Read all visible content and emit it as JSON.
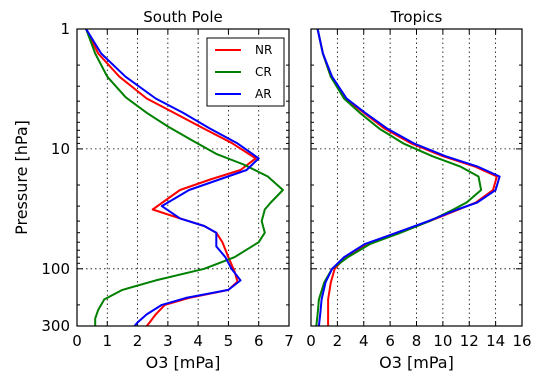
{
  "chart_data": [
    {
      "type": "line",
      "title": "South Pole",
      "xlabel": "O3 [mPa]",
      "ylabel": "Pressure [hPa]",
      "xlim": [
        0,
        7
      ],
      "ylim": [
        300,
        1
      ],
      "yscale": "log",
      "xticks": [
        "0",
        "1",
        "2",
        "3",
        "4",
        "5",
        "6",
        "7"
      ],
      "yticks": [
        {
          "value": 1,
          "label": "1"
        },
        {
          "value": 10,
          "label": "10"
        },
        {
          "value": 100,
          "label": "100"
        },
        {
          "value": 300,
          "label": "300"
        }
      ],
      "grid": true,
      "legend": {
        "placement": "top-right",
        "entries": [
          "NR",
          "CR",
          "AR"
        ]
      },
      "series": [
        {
          "name": "NR",
          "color": "#ff0000",
          "points": [
            [
              0.3,
              1
            ],
            [
              0.7,
              1.6
            ],
            [
              1.4,
              2.5
            ],
            [
              2.3,
              3.8
            ],
            [
              3.2,
              5
            ],
            [
              4.2,
              6.8
            ],
            [
              5.1,
              8.9
            ],
            [
              5.9,
              12
            ],
            [
              5.4,
              15
            ],
            [
              4.4,
              18
            ],
            [
              3.4,
              22
            ],
            [
              2.5,
              32
            ],
            [
              3.4,
              38
            ],
            [
              4.2,
              44
            ],
            [
              4.6,
              50
            ],
            [
              4.8,
              60
            ],
            [
              5.0,
              80
            ],
            [
              5.2,
              105
            ],
            [
              5.3,
              128
            ],
            [
              5.0,
              150
            ],
            [
              3.7,
              175
            ],
            [
              2.9,
              200
            ],
            [
              2.6,
              240
            ],
            [
              2.4,
              280
            ],
            [
              2.3,
              300
            ]
          ]
        },
        {
          "name": "CR",
          "color": "#008000",
          "points": [
            [
              0.3,
              1
            ],
            [
              0.6,
              1.6
            ],
            [
              1.0,
              2.5
            ],
            [
              1.6,
              3.7
            ],
            [
              2.3,
              5
            ],
            [
              3.0,
              6.5
            ],
            [
              3.8,
              8.5
            ],
            [
              4.6,
              11
            ],
            [
              5.5,
              13.5
            ],
            [
              6.3,
              17
            ],
            [
              6.8,
              22
            ],
            [
              6.4,
              28
            ],
            [
              6.2,
              32
            ],
            [
              6.1,
              40
            ],
            [
              6.2,
              50
            ],
            [
              6.0,
              60
            ],
            [
              5.2,
              80
            ],
            [
              4.2,
              100
            ],
            [
              2.6,
              125
            ],
            [
              1.5,
              150
            ],
            [
              0.9,
              180
            ],
            [
              0.7,
              220
            ],
            [
              0.6,
              260
            ],
            [
              0.6,
              300
            ]
          ]
        },
        {
          "name": "AR",
          "color": "#0000ff",
          "points": [
            [
              0.3,
              1
            ],
            [
              0.8,
              1.6
            ],
            [
              1.6,
              2.5
            ],
            [
              2.6,
              3.8
            ],
            [
              3.5,
              5
            ],
            [
              4.4,
              6.8
            ],
            [
              5.3,
              9
            ],
            [
              6.0,
              12
            ],
            [
              5.6,
              15
            ],
            [
              4.7,
              18
            ],
            [
              3.7,
              22
            ],
            [
              2.8,
              30
            ],
            [
              3.4,
              38
            ],
            [
              4.2,
              44
            ],
            [
              4.6,
              50
            ],
            [
              4.6,
              65
            ],
            [
              4.9,
              80
            ],
            [
              5.1,
              100
            ],
            [
              5.4,
              125
            ],
            [
              5.0,
              150
            ],
            [
              3.6,
              175
            ],
            [
              2.8,
              200
            ],
            [
              2.3,
              240
            ],
            [
              2.0,
              280
            ],
            [
              1.9,
              300
            ]
          ]
        }
      ]
    },
    {
      "type": "line",
      "title": "Tropics",
      "xlabel": "O3 [mPa]",
      "xlim": [
        0,
        16
      ],
      "ylim": [
        300,
        1
      ],
      "yscale": "log",
      "xticks": [
        "0",
        "2",
        "4",
        "6",
        "8",
        "10",
        "12",
        "14",
        "16"
      ],
      "grid": true,
      "series": [
        {
          "name": "NR",
          "color": "#ff0000",
          "points": [
            [
              0.5,
              1
            ],
            [
              0.9,
              1.6
            ],
            [
              1.5,
              2.5
            ],
            [
              2.6,
              3.8
            ],
            [
              4.0,
              5
            ],
            [
              5.6,
              6.8
            ],
            [
              7.6,
              9
            ],
            [
              10.0,
              11.5
            ],
            [
              12.4,
              14
            ],
            [
              14.1,
              17
            ],
            [
              13.8,
              22
            ],
            [
              12.5,
              28
            ],
            [
              11.2,
              32
            ],
            [
              9.0,
              40
            ],
            [
              6.5,
              50
            ],
            [
              4.2,
              62
            ],
            [
              2.6,
              80
            ],
            [
              1.8,
              100
            ],
            [
              1.5,
              130
            ],
            [
              1.3,
              180
            ],
            [
              1.3,
              240
            ],
            [
              1.3,
              300
            ]
          ]
        },
        {
          "name": "CR",
          "color": "#008000",
          "points": [
            [
              0.5,
              1
            ],
            [
              0.9,
              1.6
            ],
            [
              1.5,
              2.5
            ],
            [
              2.5,
              3.8
            ],
            [
              3.7,
              5
            ],
            [
              5.2,
              6.8
            ],
            [
              7.0,
              9
            ],
            [
              9.2,
              11.5
            ],
            [
              11.3,
              14
            ],
            [
              12.7,
              17
            ],
            [
              12.9,
              22
            ],
            [
              11.8,
              28
            ],
            [
              10.8,
              32
            ],
            [
              9.0,
              40
            ],
            [
              6.8,
              50
            ],
            [
              4.5,
              62
            ],
            [
              2.8,
              80
            ],
            [
              1.6,
              100
            ],
            [
              1.0,
              130
            ],
            [
              0.6,
              180
            ],
            [
              0.5,
              240
            ],
            [
              0.4,
              300
            ]
          ]
        },
        {
          "name": "AR",
          "color": "#0000ff",
          "points": [
            [
              0.5,
              1
            ],
            [
              0.9,
              1.6
            ],
            [
              1.6,
              2.5
            ],
            [
              2.7,
              3.8
            ],
            [
              4.1,
              5
            ],
            [
              5.8,
              6.8
            ],
            [
              7.8,
              9
            ],
            [
              10.2,
              11.5
            ],
            [
              12.6,
              14
            ],
            [
              14.3,
              17
            ],
            [
              14.0,
              22
            ],
            [
              12.6,
              28
            ],
            [
              11.1,
              32
            ],
            [
              8.9,
              40
            ],
            [
              6.5,
              50
            ],
            [
              4.1,
              62
            ],
            [
              2.5,
              80
            ],
            [
              1.6,
              100
            ],
            [
              1.1,
              130
            ],
            [
              0.8,
              180
            ],
            [
              0.7,
              240
            ],
            [
              0.6,
              300
            ]
          ]
        }
      ]
    }
  ]
}
